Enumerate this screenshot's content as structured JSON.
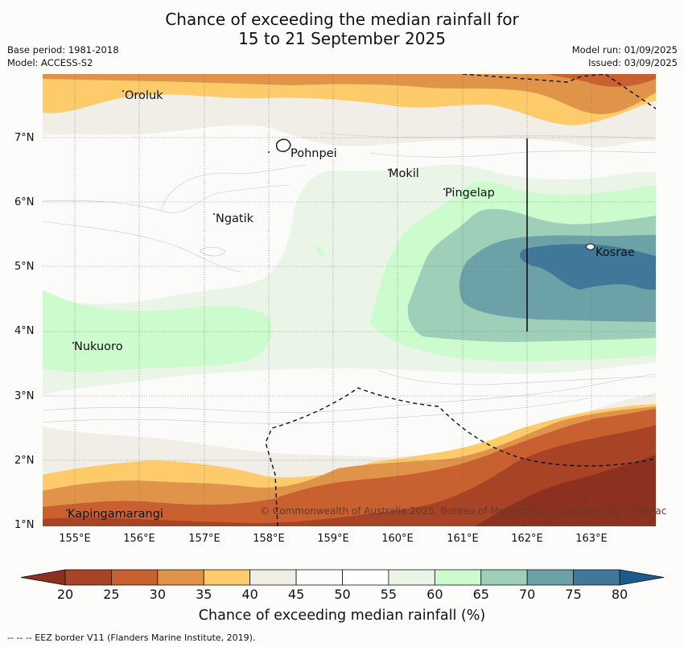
{
  "title": {
    "line1": "Chance of exceeding the median rainfall for",
    "line2": "15 to 21 September 2025"
  },
  "meta": {
    "base_period": "Base period: 1981-2018",
    "model": "Model: ACCESS-S2",
    "model_run": "Model run: 01/09/2025",
    "issued": "Issued: 03/09/2025"
  },
  "map": {
    "lat_labels": [
      "7°N",
      "6°N",
      "5°N",
      "4°N",
      "3°N",
      "2°N",
      "1°N"
    ],
    "lon_labels": [
      "155°E",
      "156°E",
      "157°E",
      "158°E",
      "159°E",
      "160°E",
      "161°E",
      "162°E",
      "163°E"
    ],
    "places": [
      "Oroluk",
      "Pohnpei",
      "Mokil",
      "Pingelap",
      "Ngatik",
      "Kosrae",
      "Nukuoro",
      "Kapingamarangi"
    ],
    "copyright": "© Commonwealth of Australia 2025, Bureau of Meteorology, supported by COSPPac"
  },
  "colorbar": {
    "ticks": [
      "20",
      "25",
      "30",
      "35",
      "40",
      "45",
      "50",
      "55",
      "60",
      "65",
      "70",
      "75",
      "80"
    ],
    "colors": [
      "#a84326",
      "#c8602f",
      "#e0944a",
      "#fecb6b",
      "#f1ede7",
      "#fbfcfa",
      "#ffffff",
      "#eaf4e7",
      "#ccfbce",
      "#9dcfb9",
      "#6da1a8",
      "#41789a"
    ],
    "under_color": "#8c311f",
    "over_color": "#1f5a8e",
    "label": "Chance of exceeding median rainfall (%)"
  },
  "footnote": "--  --  -- EEZ border V11 (Flanders Marine Institute, 2019)."
}
